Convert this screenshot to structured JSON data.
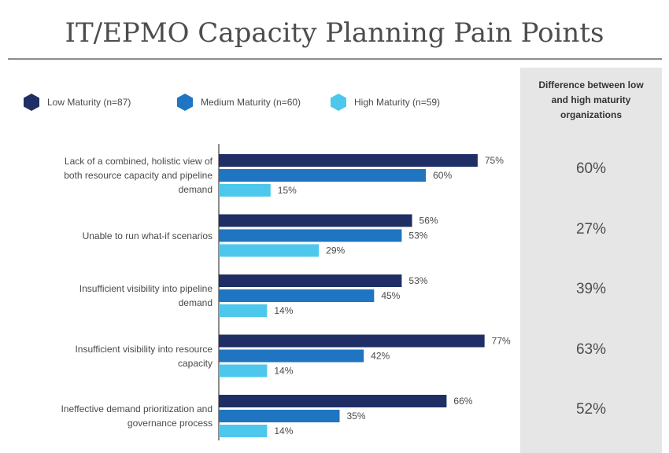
{
  "title": "IT/EPMO Capacity Planning Pain Points",
  "legend": [
    {
      "label": "Low Maturity (n=87)",
      "color": "#1f2f66"
    },
    {
      "label": "Medium Maturity (n=60)",
      "color": "#1f75c1"
    },
    {
      "label": "High Maturity (n=59)",
      "color": "#4dc8ec"
    }
  ],
  "diff_panel": {
    "header_lines": [
      "Difference between low",
      "and high maturity",
      "organizations"
    ],
    "values": [
      "60%",
      "27%",
      "39%",
      "63%",
      "52%"
    ]
  },
  "chart_data": {
    "type": "bar",
    "orientation": "horizontal",
    "title": "IT/EPMO Capacity Planning Pain Points",
    "categories": [
      [
        "Lack of a combined, holistic view of",
        "both resource capacity and pipeline",
        "demand"
      ],
      [
        "Unable to run what-if scenarios"
      ],
      [
        "Insufficient visibility into pipeline",
        "demand"
      ],
      [
        "Insufficient visibility into resource",
        "capacity"
      ],
      [
        "Ineffective demand prioritization and",
        "governance process"
      ]
    ],
    "series": [
      {
        "name": "Low Maturity (n=87)",
        "color": "#1f2f66",
        "values": [
          75,
          56,
          53,
          77,
          66
        ],
        "labels": [
          "75%",
          "56%",
          "53%",
          "77%",
          "66%"
        ]
      },
      {
        "name": "Medium Maturity (n=60)",
        "color": "#1f75c1",
        "values": [
          60,
          53,
          45,
          42,
          35
        ],
        "labels": [
          "60%",
          "53%",
          "45%",
          "42%",
          "35%"
        ]
      },
      {
        "name": "High Maturity (n=59)",
        "color": "#4dc8ec",
        "values": [
          15,
          29,
          14,
          14,
          14
        ],
        "labels": [
          "15%",
          "29%",
          "14%",
          "14%",
          "14%"
        ]
      }
    ],
    "xlim": [
      0,
      100
    ],
    "grid": false,
    "legend_position": "top"
  }
}
